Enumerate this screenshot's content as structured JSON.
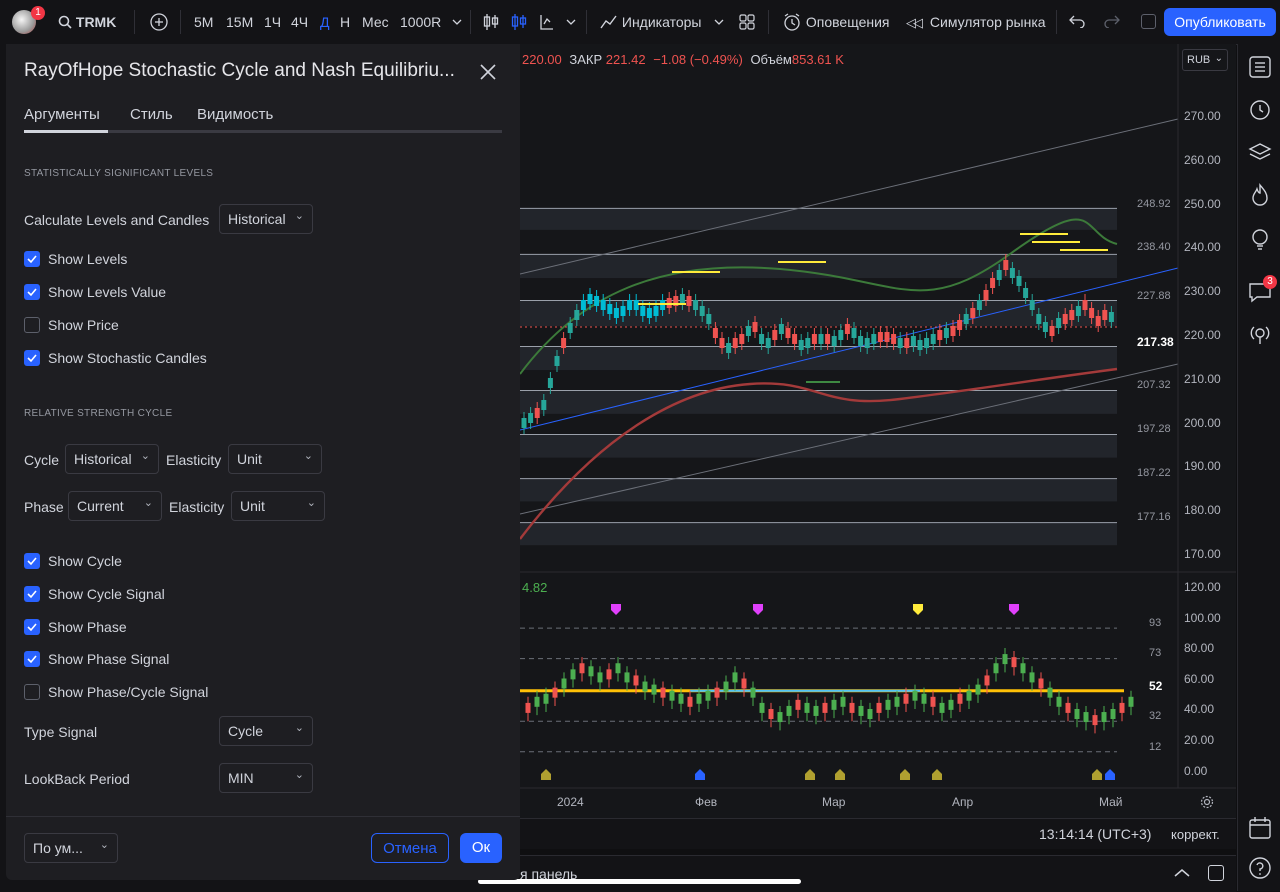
{
  "toolbar": {
    "notification_count": "1",
    "symbol": "TRMK",
    "intervals": [
      "5M",
      "15M",
      "1Ч",
      "4Ч",
      "Д",
      "Н",
      "Мес",
      "1000R"
    ],
    "indicators_label": "Индикаторы",
    "alerts_label": "Оповещения",
    "simulator_label": "Симулятор рынка",
    "publish_label": "Опубликовать"
  },
  "legend": {
    "open_value": "220.00",
    "close_label": "ЗАКР",
    "close_value": "221.42",
    "change": "−1.08 (−0.49%)",
    "volume_label": "Объём",
    "volume_value": "853.61 K",
    "indicator_value": "4.82"
  },
  "currency": "RUB",
  "price_axis": [
    "270.00",
    "260.00",
    "250.00",
    "240.00",
    "230.00",
    "220.00",
    "210.00",
    "200.00",
    "190.00",
    "180.00",
    "170.00"
  ],
  "price_current": "217.38",
  "level_labels": [
    "248.92",
    "238.40",
    "227.88",
    "207.32",
    "197.28",
    "187.22",
    "177.16"
  ],
  "osc_axis": [
    "120.00",
    "100.00",
    "80.00",
    "60.00",
    "40.00",
    "20.00",
    "0.00"
  ],
  "osc_levels": [
    "93",
    "73",
    "52",
    "32",
    "12"
  ],
  "time_axis": [
    "2024",
    "Фев",
    "Мар",
    "Апр",
    "Май"
  ],
  "bottom_bar": {
    "clock": "13:14:14 (UTC+3)",
    "adjust": "коррект.",
    "panel_label": "я панель"
  },
  "sidebar": {
    "chat_badge": "3"
  },
  "dialog": {
    "title": "RayOfHope Stochastic Cycle and Nash Equilibriu...",
    "tabs": [
      "Аргументы",
      "Стиль",
      "Видимость"
    ],
    "section1": "STATISTICALLY SIGNIFICANT LEVELS",
    "calc_label": "Calculate Levels and Candles",
    "calc_value": "Historical",
    "show_levels": "Show Levels",
    "show_levels_value": "Show Levels Value",
    "show_price": "Show Price",
    "show_stoch": "Show Stochastic Candles",
    "section2": "RELATIVE STRENGTH CYCLE",
    "cycle_label": "Cycle",
    "cycle_value": "Historical",
    "elasticity_label": "Elasticity",
    "elasticity1_value": "Unit",
    "phase_label": "Phase",
    "phase_value": "Current",
    "elasticity2_value": "Unit",
    "show_cycle": "Show Cycle",
    "show_cycle_signal": "Show Cycle Signal",
    "show_phase": "Show Phase",
    "show_phase_signal": "Show Phase Signal",
    "show_phase_cycle_signal": "Show Phase/Cycle Signal",
    "type_signal_label": "Type Signal",
    "type_signal_value": "Cycle",
    "lookback_label": "LookBack Period",
    "lookback_value": "MIN",
    "defaults_label": "По ум...",
    "cancel_label": "Отмена",
    "ok_label": "Ок"
  },
  "colors": {
    "accent": "#2962ff",
    "up": "#26a69a",
    "down": "#ef5350",
    "stoch_cyan": "#00bcd4",
    "stoch_yellow": "#ffeb3b"
  }
}
